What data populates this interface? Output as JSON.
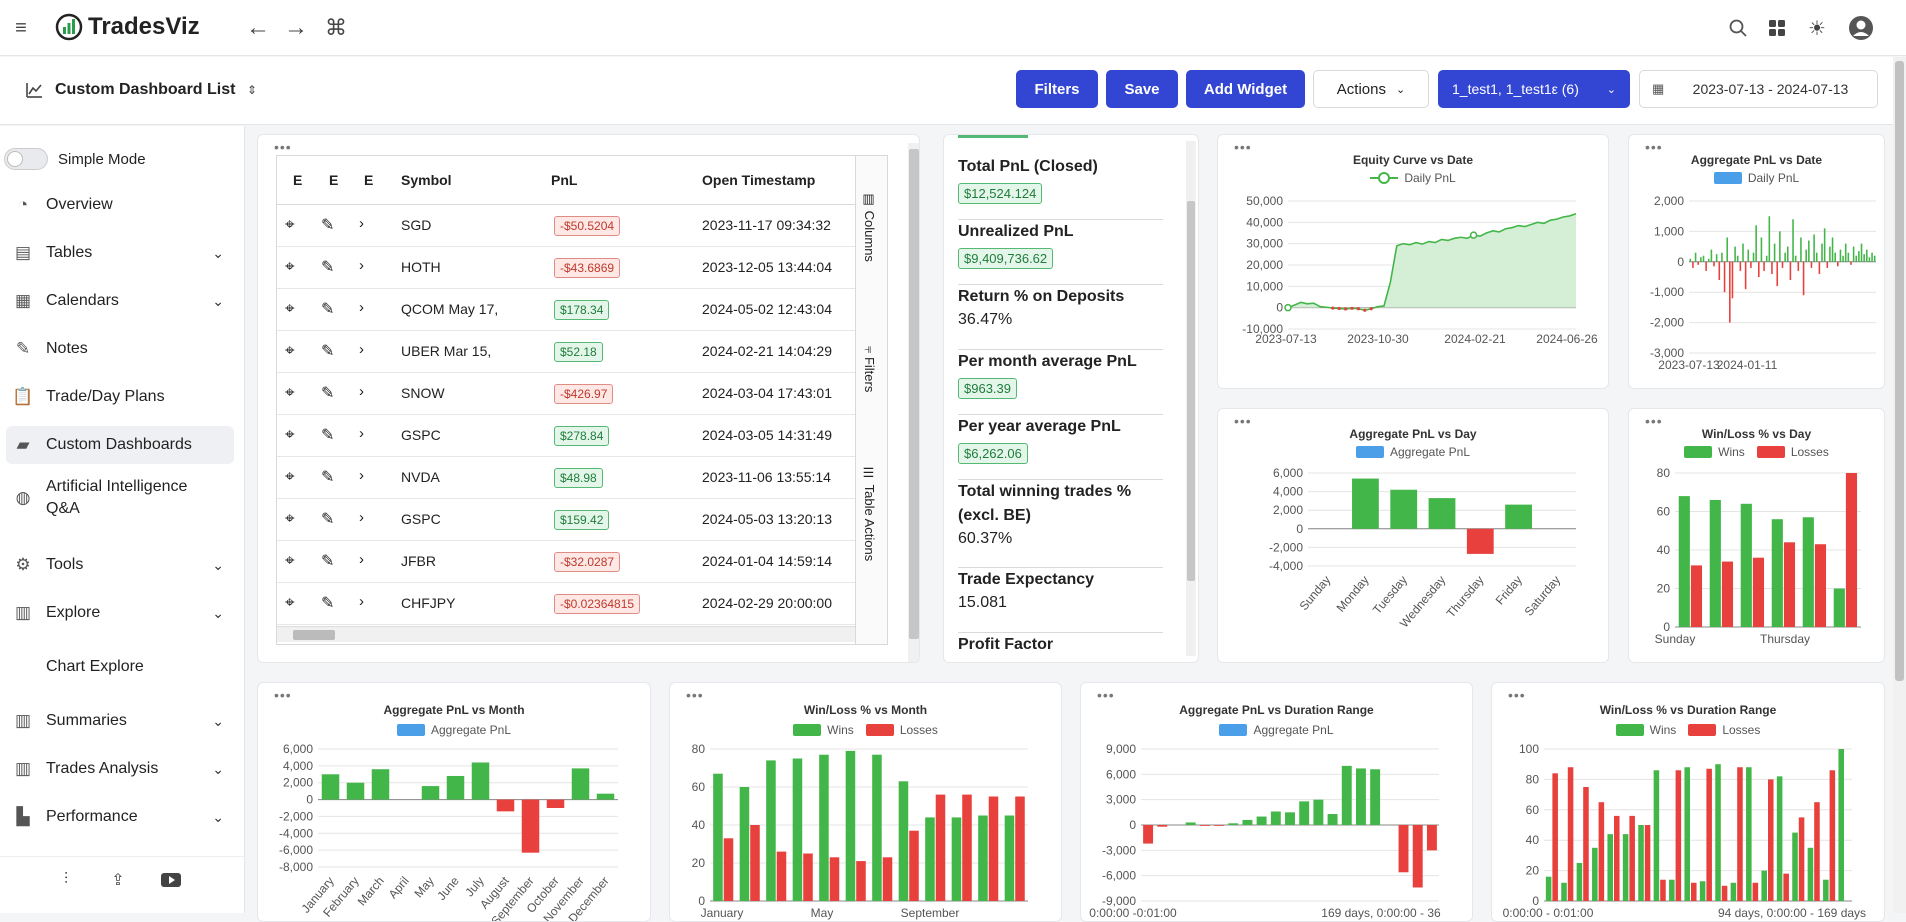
{
  "app": {
    "name": "TradesViz"
  },
  "subbar": {
    "title": "Custom Dashboard List",
    "filters": "Filters",
    "save": "Save",
    "add_widget": "Add Widget",
    "actions": "Actions",
    "accounts": "1_test1, 1_test1ε (6)",
    "date_range": "2023-07-13 - 2024-07-13"
  },
  "sidebar": {
    "simple_mode": "Simple Mode",
    "items": [
      {
        "label": "Overview",
        "icon": "pie-icon",
        "chev": false
      },
      {
        "label": "Tables",
        "icon": "table-icon",
        "chev": true
      },
      {
        "label": "Calendars",
        "icon": "calendar-icon",
        "chev": true
      },
      {
        "label": "Notes",
        "icon": "notes-icon",
        "chev": false
      },
      {
        "label": "Trade/Day Plans",
        "icon": "clipboard-icon",
        "chev": false
      },
      {
        "label": "Custom Dashboards",
        "icon": "layers-icon",
        "chev": false,
        "active": true
      },
      {
        "label": "Artificial Intelligence Q&A",
        "icon": "ai-icon",
        "chev": false
      },
      {
        "label": "Tools",
        "icon": "gear-icon",
        "chev": true
      },
      {
        "label": "Explore",
        "icon": "chart-icon",
        "chev": true
      },
      {
        "label": "Chart Explore",
        "icon": "",
        "chev": false
      },
      {
        "label": "Summaries",
        "icon": "chart-icon",
        "chev": true
      },
      {
        "label": "Trades Analysis",
        "icon": "chart-icon",
        "chev": true
      },
      {
        "label": "Performance",
        "icon": "perf-icon",
        "chev": true
      }
    ]
  },
  "table": {
    "headers": [
      "E",
      "E",
      "E",
      "Symbol",
      "PnL",
      "Open Timestamp"
    ],
    "side_tabs": [
      "Columns",
      "Filters",
      "Table Actions"
    ],
    "rows": [
      {
        "symbol": "SGD",
        "pnl": "-$50.5204",
        "neg": true,
        "ts": "2023-11-17 09:34:32"
      },
      {
        "symbol": "HOTH",
        "pnl": "-$43.6869",
        "neg": true,
        "ts": "2023-12-05 13:44:04"
      },
      {
        "symbol": "QCOM May 17,",
        "pnl": "$178.34",
        "neg": false,
        "ts": "2024-05-02 12:43:04"
      },
      {
        "symbol": "UBER Mar 15,",
        "pnl": "$52.18",
        "neg": false,
        "ts": "2024-02-21 14:04:29"
      },
      {
        "symbol": "SNOW",
        "pnl": "-$426.97",
        "neg": true,
        "ts": "2024-03-04 17:43:01"
      },
      {
        "symbol": "GSPC",
        "pnl": "$278.84",
        "neg": false,
        "ts": "2024-03-05 14:31:49"
      },
      {
        "symbol": "NVDA",
        "pnl": "$48.98",
        "neg": false,
        "ts": "2023-11-06 13:55:14"
      },
      {
        "symbol": "GSPC",
        "pnl": "$159.42",
        "neg": false,
        "ts": "2024-05-03 13:20:13"
      },
      {
        "symbol": "JFBR",
        "pnl": "-$32.0287",
        "neg": true,
        "ts": "2024-01-04 14:59:14"
      },
      {
        "symbol": "CHFJPY",
        "pnl": "-$0.02364815",
        "neg": true,
        "ts": "2024-02-29 20:00:00"
      }
    ]
  },
  "stats": [
    {
      "label": "Total PnL (Closed)",
      "value": "$12,524.124",
      "badge": true
    },
    {
      "label": "Unrealized PnL",
      "value": "$9,409,736.62",
      "badge": true
    },
    {
      "label": "Return % on Deposits",
      "value": "36.47%",
      "badge": false
    },
    {
      "label": "Per month average PnL",
      "value": "$963.39",
      "badge": true
    },
    {
      "label": "Per year average PnL",
      "value": "$6,262.06",
      "badge": true
    },
    {
      "label": "Total winning trades % (excl. BE)",
      "value": "60.37%",
      "badge": false
    },
    {
      "label": "Trade Expectancy",
      "value": "15.081",
      "badge": false
    },
    {
      "label": "Profit Factor",
      "value": "",
      "badge": false
    }
  ],
  "colors": {
    "green": "#43b649",
    "red": "#e8403c",
    "blue": "#4a9fe8",
    "primary": "#3346d3"
  },
  "chart_data": [
    {
      "id": "equity",
      "type": "area",
      "title": "Equity Curve vs Date",
      "legend": [
        "Daily PnL"
      ],
      "x_ticks": [
        "2023-07-13",
        "2023-10-30",
        "2024-02-21",
        "2024-06-26"
      ],
      "y_ticks": [
        "50,000",
        "40,000",
        "30,000",
        "20,000",
        "10,000",
        "0",
        "-10,000"
      ],
      "ylim": [
        -10000,
        50000
      ],
      "values": [
        0,
        1200,
        2500,
        1800,
        2100,
        500,
        200,
        -200,
        -400,
        -600,
        -300,
        -500,
        -1200,
        -500,
        500,
        800,
        12000,
        29000,
        30000,
        29500,
        30500,
        29800,
        31000,
        30500,
        32000,
        31500,
        32500,
        33000,
        32500,
        34000,
        33500,
        35000,
        36000,
        35500,
        37000,
        37500,
        38500,
        38000,
        39000,
        40000,
        39500,
        41000,
        41500,
        42500,
        43000,
        44000
      ]
    },
    {
      "id": "agg_date",
      "type": "bar",
      "title": "Aggregate PnL vs Date",
      "legend": [
        "Daily PnL"
      ],
      "x_ticks": [
        "2023-07-13",
        "2024-01-11"
      ],
      "y_ticks": [
        "2,000",
        "1,000",
        "0",
        "-1,000",
        "-2,000",
        "-3,000"
      ],
      "ylim": [
        -3000,
        2000
      ],
      "values": [
        100,
        -200,
        300,
        -100,
        150,
        200,
        -300,
        100,
        400,
        -150,
        250,
        -600,
        300,
        -1000,
        800,
        -2000,
        -1200,
        500,
        200,
        -300,
        600,
        -900,
        400,
        -200,
        300,
        1200,
        -500,
        800,
        -300,
        200,
        1500,
        -400,
        600,
        -800,
        1000,
        -200,
        300,
        500,
        -600,
        1400,
        200,
        -300,
        800,
        -1100,
        400,
        700,
        -200,
        900,
        300,
        -400,
        600,
        1100,
        -200,
        500,
        800,
        300,
        -150,
        400,
        200,
        600,
        300,
        -100,
        500,
        200,
        350,
        600,
        250,
        400,
        150,
        300,
        200
      ]
    },
    {
      "id": "agg_day",
      "type": "bar",
      "title": "Aggregate PnL vs Day",
      "legend": [
        "Aggregate PnL"
      ],
      "categories": [
        "Sunday",
        "Monday",
        "Tuesday",
        "Wednesday",
        "Thursday",
        "Friday",
        "Saturday"
      ],
      "y_ticks": [
        "6,000",
        "4,000",
        "2,000",
        "0",
        "-2,000",
        "-4,000"
      ],
      "ylim": [
        -4000,
        6000
      ],
      "values": [
        0,
        5400,
        4200,
        3300,
        -2700,
        2600,
        0
      ]
    },
    {
      "id": "wl_day",
      "type": "bar",
      "title": "Win/Loss % vs Day",
      "legend": [
        "Wins",
        "Losses"
      ],
      "x_ticks": [
        "Sunday",
        "Thursday"
      ],
      "y_ticks": [
        "80",
        "60",
        "40",
        "20",
        "0"
      ],
      "ylim": [
        0,
        80
      ],
      "wins": [
        68,
        66,
        64,
        56,
        57,
        20
      ],
      "losses": [
        32,
        34,
        36,
        44,
        43,
        80
      ]
    },
    {
      "id": "agg_month",
      "type": "bar",
      "title": "Aggregate PnL vs Month",
      "legend": [
        "Aggregate PnL"
      ],
      "categories": [
        "January",
        "February",
        "March",
        "April",
        "May",
        "June",
        "July",
        "August",
        "September",
        "October",
        "November",
        "December"
      ],
      "y_ticks": [
        "6,000",
        "4,000",
        "2,000",
        "0",
        "-2,000",
        "-4,000",
        "-6,000",
        "-8,000"
      ],
      "ylim": [
        -8000,
        6000
      ],
      "values": [
        3000,
        2000,
        3600,
        0,
        1600,
        2800,
        4400,
        -1400,
        -6300,
        -1000,
        3700,
        700
      ]
    },
    {
      "id": "wl_month",
      "type": "bar",
      "title": "Win/Loss % vs Month",
      "legend": [
        "Wins",
        "Losses"
      ],
      "x_ticks": [
        "January",
        "May",
        "September"
      ],
      "y_ticks": [
        "80",
        "60",
        "40",
        "20",
        "0"
      ],
      "ylim": [
        0,
        80
      ],
      "wins": [
        67,
        60,
        74,
        75,
        77,
        79,
        77,
        63,
        44,
        44,
        45,
        45
      ],
      "losses": [
        33,
        40,
        26,
        25,
        23,
        21,
        23,
        37,
        56,
        56,
        55,
        55
      ]
    },
    {
      "id": "agg_duration",
      "type": "bar",
      "title": "Aggregate PnL vs Duration Range",
      "legend": [
        "Aggregate PnL"
      ],
      "x_ticks": [
        "0:00:00 -0:01:00",
        "169 days, 0:00:00 - 36"
      ],
      "y_ticks": [
        "9,000",
        "6,000",
        "3,000",
        "0",
        "-3,000",
        "-6,000",
        "-9,000"
      ],
      "ylim": [
        -9000,
        9000
      ],
      "values": [
        -2200,
        -200,
        0,
        300,
        -100,
        -100,
        200,
        600,
        1000,
        1600,
        1500,
        2800,
        3000,
        1300,
        7000,
        6700,
        6600,
        0,
        -5600,
        -7400,
        -3000
      ]
    },
    {
      "id": "wl_duration",
      "type": "bar",
      "title": "Win/Loss % vs Duration Range",
      "legend": [
        "Wins",
        "Losses"
      ],
      "x_ticks": [
        "0:00:00 - 0:01:00",
        "94 days, 0:00:00 - 169 days"
      ],
      "y_ticks": [
        "100",
        "80",
        "60",
        "40",
        "20",
        "0"
      ],
      "ylim": [
        0,
        100
      ],
      "wins": [
        16,
        12,
        25,
        35,
        44,
        44,
        50,
        86,
        14,
        88,
        13,
        90,
        12,
        88,
        20,
        82,
        45,
        35,
        14,
        100
      ],
      "losses": [
        84,
        88,
        75,
        65,
        56,
        56,
        50,
        14,
        86,
        12,
        87,
        10,
        88,
        12,
        80,
        18,
        55,
        65,
        86,
        0
      ]
    }
  ]
}
